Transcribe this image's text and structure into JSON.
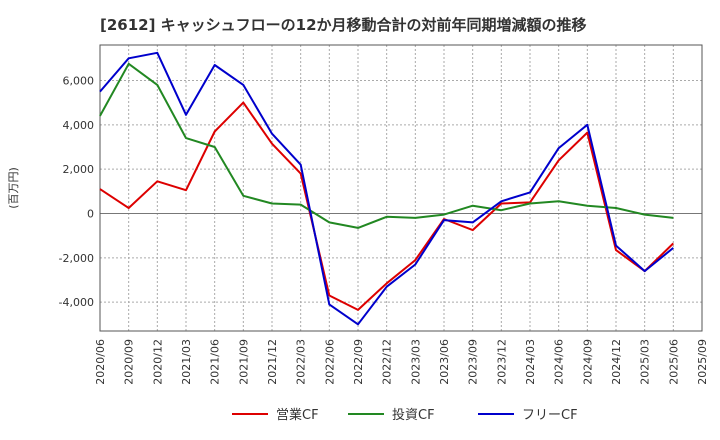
{
  "chart_data": {
    "type": "line",
    "title": "[2612]  キャッシュフローの12か月移動合計の対前年同期増減額の推移",
    "ylabel": "(百万円)",
    "xlabel": "",
    "ylim": [
      -5300,
      7600
    ],
    "yticks": [
      -4000,
      -2000,
      0,
      2000,
      4000,
      6000
    ],
    "ytick_labels": [
      "-4,000",
      "-2,000",
      "0",
      "2,000",
      "4,000",
      "6,000"
    ],
    "xlim": [
      "2020/06",
      "2025/09"
    ],
    "x": [
      "2020/06",
      "2020/09",
      "2020/12",
      "2021/03",
      "2021/06",
      "2021/09",
      "2021/12",
      "2022/03",
      "2022/06",
      "2022/09",
      "2022/12",
      "2023/03",
      "2023/06",
      "2023/09",
      "2023/12",
      "2024/03",
      "2024/06",
      "2024/09",
      "2024/12",
      "2025/03",
      "2025/06"
    ],
    "xtick_labels": [
      "2020/06",
      "2020/09",
      "2020/12",
      "2021/03",
      "2021/06",
      "2021/09",
      "2021/12",
      "2022/03",
      "2022/06",
      "2022/09",
      "2022/12",
      "2023/03",
      "2023/06",
      "2023/09",
      "2023/12",
      "2024/03",
      "2024/06",
      "2024/09",
      "2024/12",
      "2025/03",
      "2025/06",
      "2025/09"
    ],
    "grid": true,
    "legend_position": "bottom",
    "series": [
      {
        "name": "営業CF",
        "color": "#dd0000",
        "values": [
          1100,
          250,
          1450,
          1050,
          3700,
          5000,
          3150,
          1800,
          -3700,
          -4350,
          -3150,
          -2100,
          -250,
          -750,
          450,
          500,
          2400,
          3650,
          -1650,
          -2600,
          -1350
        ]
      },
      {
        "name": "投資CF",
        "color": "#228822",
        "values": [
          4400,
          6750,
          5800,
          3400,
          3000,
          800,
          450,
          400,
          -400,
          -650,
          -150,
          -200,
          -50,
          350,
          150,
          450,
          550,
          350,
          250,
          -50,
          -200
        ]
      },
      {
        "name": "フリーCF",
        "color": "#0000cc",
        "values": [
          5500,
          7000,
          7250,
          4450,
          6700,
          5800,
          3600,
          2200,
          -4100,
          -5000,
          -3300,
          -2300,
          -300,
          -400,
          550,
          950,
          2950,
          4000,
          -1450,
          -2600,
          -1550
        ]
      }
    ]
  }
}
